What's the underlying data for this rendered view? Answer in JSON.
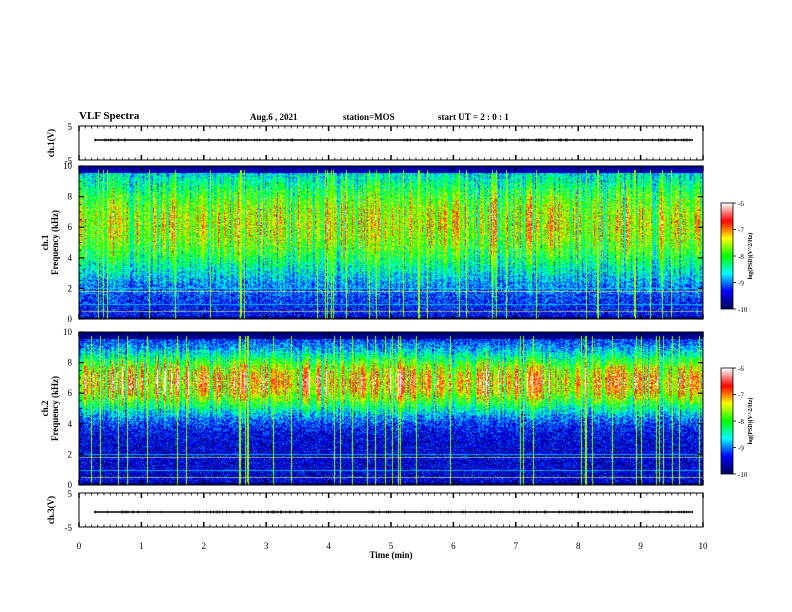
{
  "header": {
    "title": "VLF Spectra",
    "date": "Aug.6 , 2021",
    "station": "station=MOS",
    "start_ut": "start UT = 2 : 0 : 1"
  },
  "chart_data": [
    {
      "type": "line",
      "panel": "ch1-waveform",
      "ylabel": "ch.1(V)",
      "yticks": [
        "5",
        "-5"
      ],
      "ylim": [
        -5,
        5
      ],
      "line_level": 0
    },
    {
      "type": "heatmap",
      "panel": "ch1-spectrogram",
      "ylabel": "ch.1 Frequency (kHz)",
      "ylim": [
        0,
        10
      ],
      "yticks": [
        "0",
        "2",
        "4",
        "6",
        "8",
        "10"
      ],
      "xlim": [
        0,
        10
      ],
      "dominant_band_khz": [
        3,
        9.5
      ],
      "colorbar": {
        "label": "log(PSD)(V^2/Hz)",
        "ticks": [
          "-6",
          "-7",
          "-8",
          "-9",
          "-10"
        ],
        "range": [
          -10,
          -6
        ]
      }
    },
    {
      "type": "heatmap",
      "panel": "ch2-spectrogram",
      "ylabel": "ch.2 Frequency (kHz)",
      "ylim": [
        0,
        10
      ],
      "yticks": [
        "0",
        "2",
        "4",
        "6",
        "8",
        "10"
      ],
      "xlim": [
        0,
        10
      ],
      "dominant_band_khz": [
        5,
        8.5
      ],
      "colorbar": {
        "label": "log(PSD)(V^2/Hz)",
        "ticks": [
          "-6",
          "-7",
          "-8",
          "-9",
          "-10"
        ],
        "range": [
          -10,
          -6
        ]
      }
    },
    {
      "type": "line",
      "panel": "ch3-waveform",
      "ylabel": "ch.3(V)",
      "yticks": [
        "5",
        "-5"
      ],
      "ylim": [
        -5,
        5
      ],
      "line_level": 0
    }
  ],
  "xaxis": {
    "label": "Time (min)",
    "ticks": [
      "0",
      "1",
      "2",
      "3",
      "4",
      "5",
      "6",
      "7",
      "8",
      "9",
      "10"
    ],
    "range": [
      0,
      10
    ]
  },
  "colors": {
    "colormap": [
      "#000060",
      "#0000ff",
      "#00ffff",
      "#00ff00",
      "#ffff00",
      "#ff0000",
      "#ffffff"
    ]
  }
}
